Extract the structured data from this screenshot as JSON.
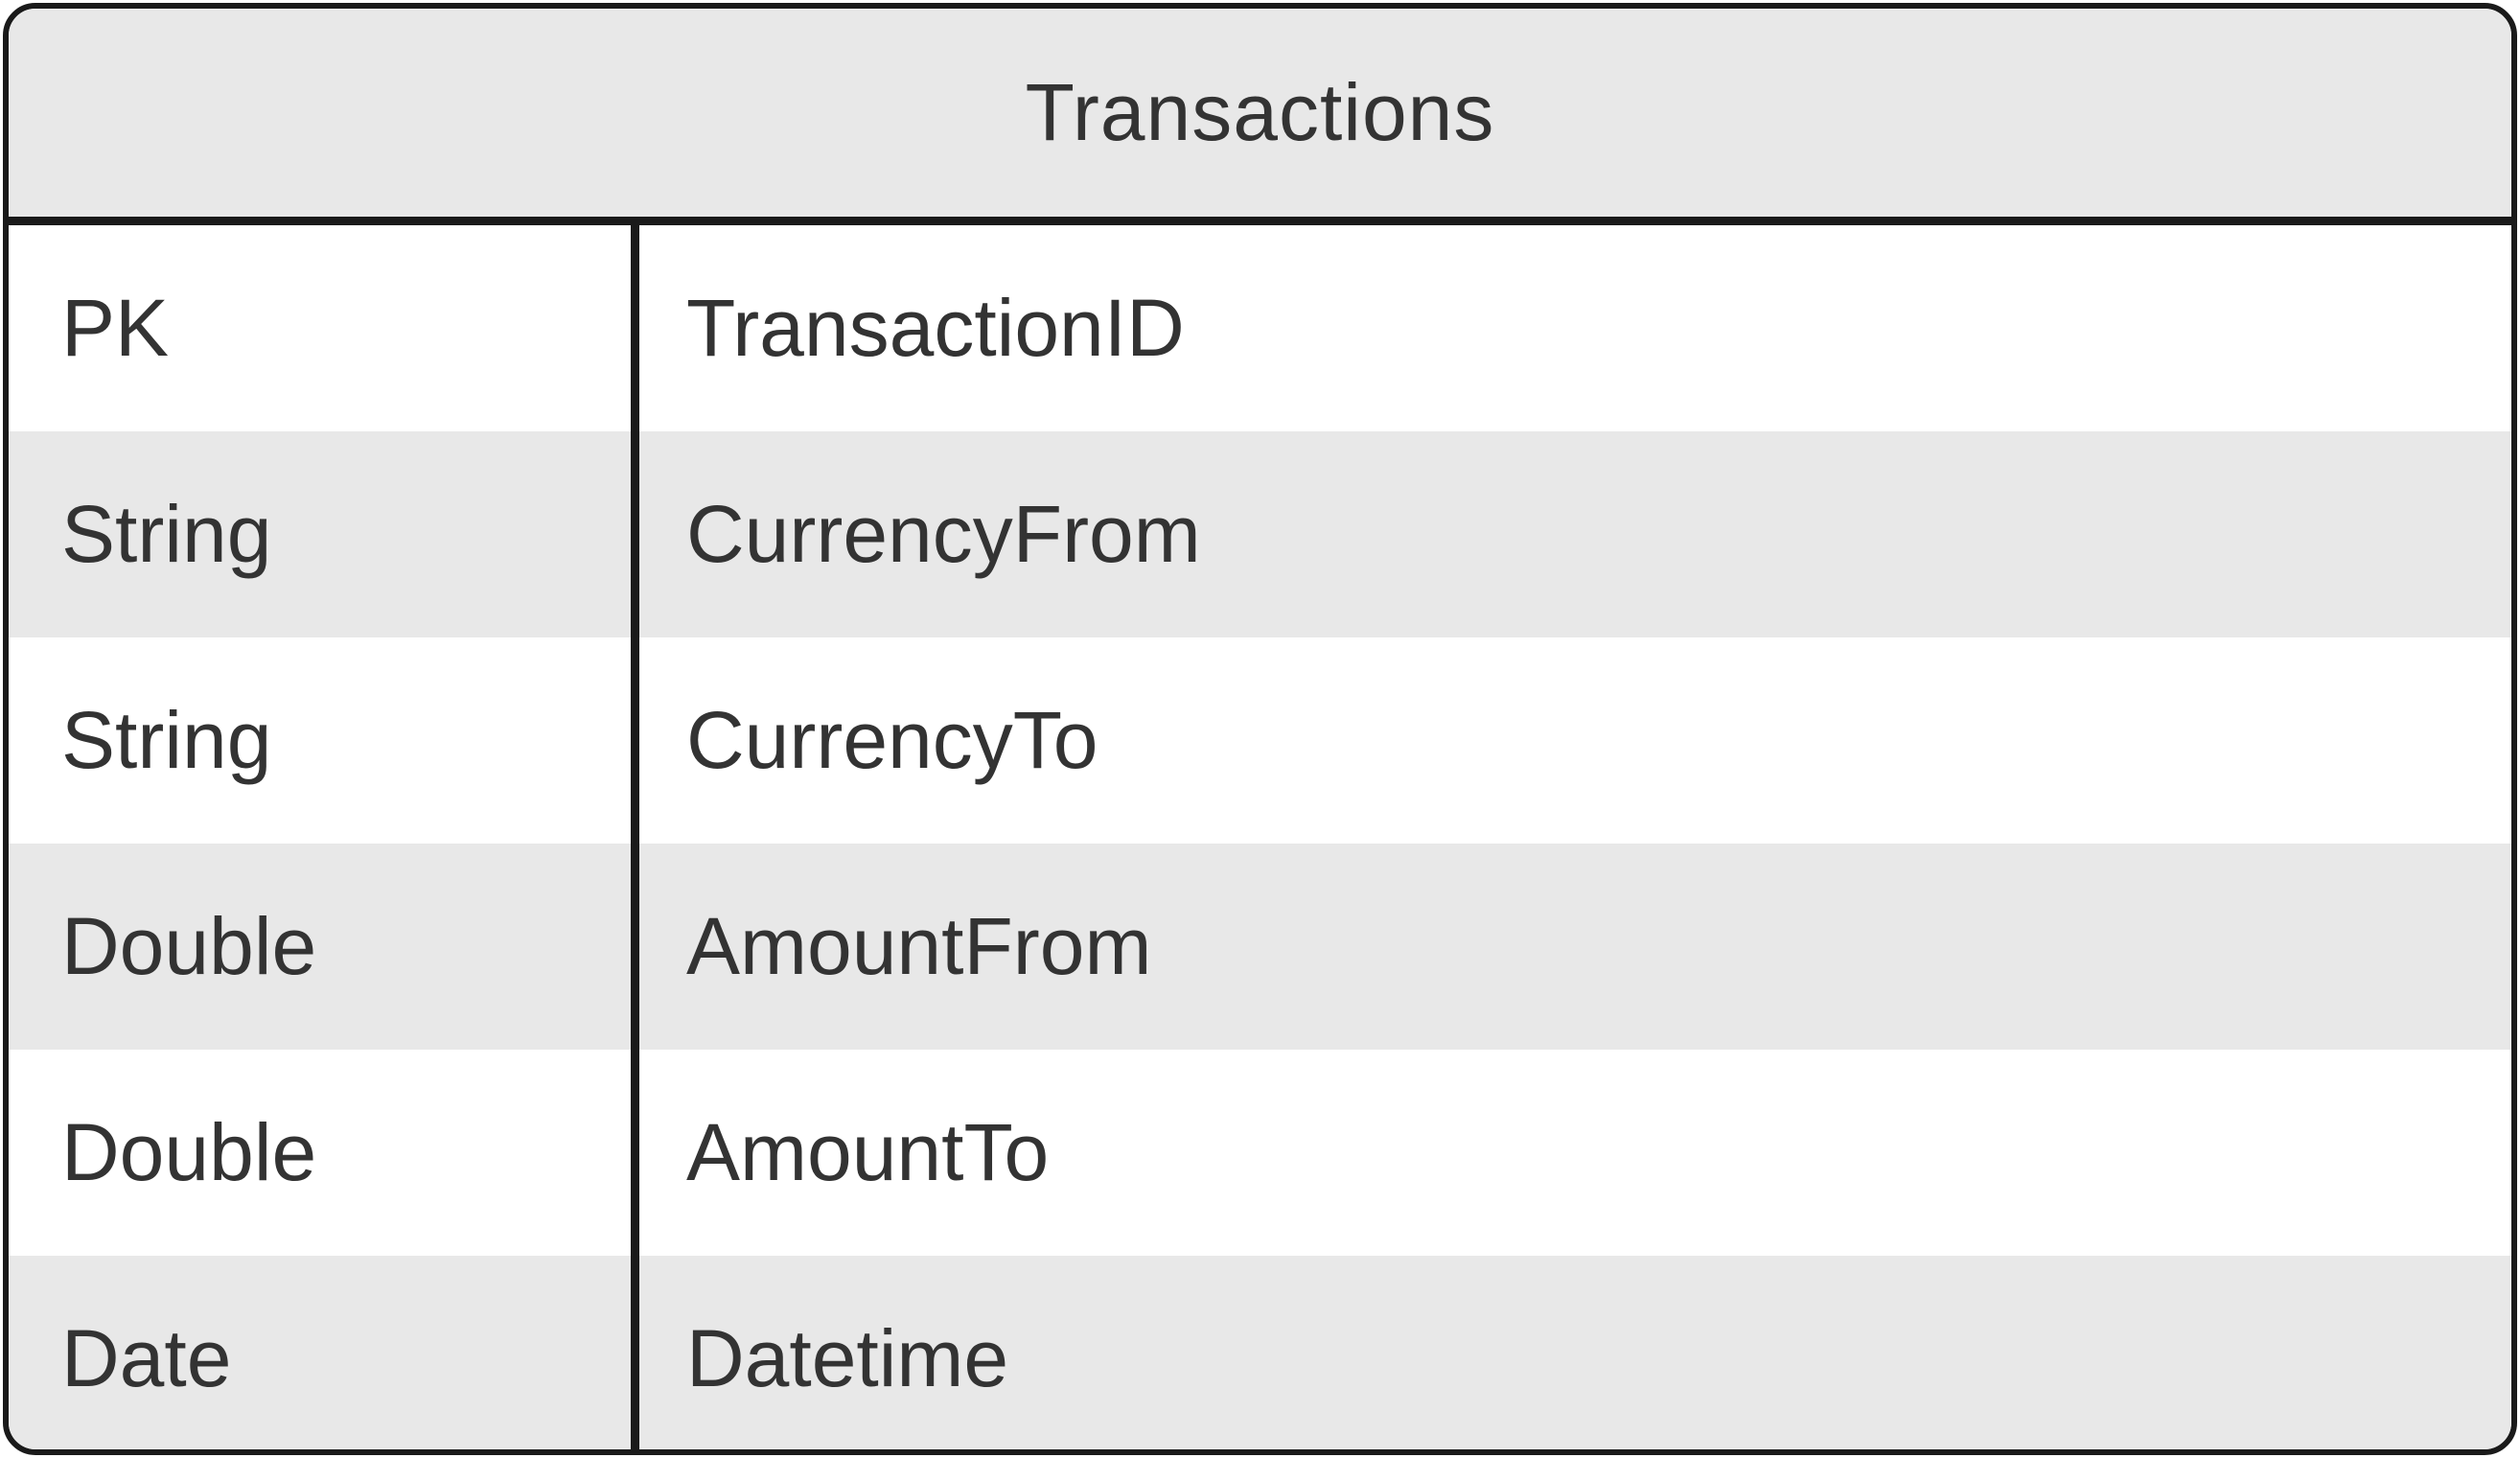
{
  "entity": {
    "title": "Transactions",
    "fields": [
      {
        "type": "PK",
        "name": "TransactionID"
      },
      {
        "type": "String",
        "name": "CurrencyFrom"
      },
      {
        "type": "String",
        "name": "CurrencyTo"
      },
      {
        "type": "Double",
        "name": "AmountFrom"
      },
      {
        "type": "Double",
        "name": "AmountTo"
      },
      {
        "type": "Date",
        "name": "Datetime"
      }
    ]
  },
  "colors": {
    "border": "#1a1a1a",
    "header_background": "#e8e8e8",
    "row_shaded": "#e8e8e8",
    "row_plain": "#ffffff",
    "text": "#333333"
  }
}
